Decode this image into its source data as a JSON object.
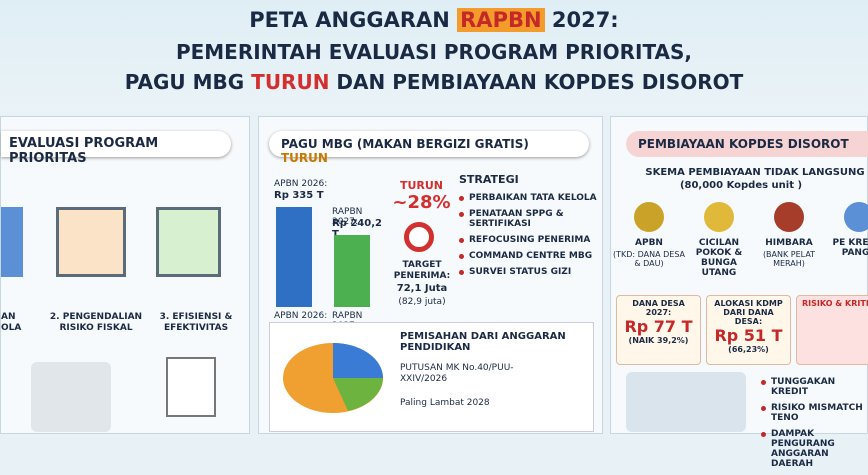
{
  "header": {
    "title_line1": [
      "PETA ANGGARAN",
      "RAPBN",
      "2027:"
    ],
    "title_line2": "PEMERINTAH EVALUASI PROGRAM PRIORITAS,",
    "title_line3": [
      "PAGU MBG",
      "TURUN",
      "DAN PEMBIAYAAN KOPDES DISOROT"
    ]
  },
  "left": {
    "title": "EVALUASI PROGRAM PRIORITAS",
    "items": [
      "AN OLA",
      "2. PENGENDALIAN RISIKO FISKAL",
      "3. EFISIENSI & EFEKTIVITAS"
    ]
  },
  "middle": {
    "title": "PAGU MBG (MAKAN BERGIZI GRATIS)",
    "title_highlight": "TURUN",
    "chart": {
      "type": "bar",
      "categories": [
        "APBN 2026:",
        "RAPBN 2027:"
      ],
      "values": [
        335,
        240.2
      ],
      "value_labels": [
        "Rp 335 T",
        "Rp 240,2 T"
      ],
      "colors": [
        "#2f6fc4",
        "#4caf50"
      ]
    },
    "drop_label": "TURUN",
    "drop_value": "~28%",
    "target_label": "TARGET PENERIMA:",
    "target_value": "72,1 Juta",
    "target_note": "(82,9 juta)",
    "strategy_title": "STRATEGI",
    "strategies": [
      "PERBAIKAN TATA KELOLA",
      "PENATAAN SPPG & SERTIFIKASI",
      "REFOCUSING PENERIMA",
      "COMMAND CENTRE MBG",
      "SURVEI STATUS GIZI"
    ],
    "separation_title": "PEMISAHAN DARI ANGGARAN PENDIDIKAN",
    "separation_items": [
      "PUTUSAN MK No.40/PUU-XXIV/2026",
      "Paling Lambat 2028"
    ]
  },
  "right": {
    "title": "PEMBIAYAAN KOPDES DISOROT",
    "scheme_title": "SKEMA PEMBIAYAAN TIDAK LANGSUNG",
    "scheme_note": "(80,000 Kopdes unit )",
    "flow": [
      {
        "label": "APBN",
        "note": "(TKD: DANA DESA & DAU)"
      },
      {
        "label": "CICILAN POKOK & BUNGA UTANG",
        "note": ""
      },
      {
        "label": "HIMBARA",
        "note": "(BANK PELAT MERAH)"
      },
      {
        "label": "PE KREDIT PANGA",
        "note": ""
      }
    ],
    "boxes": [
      {
        "label": "DANA DESA 2027:",
        "value": "Rp 77 T",
        "note": "(NAIK 39,2%)"
      },
      {
        "label": "ALOKASI KDMP DARI DANA DESA:",
        "value": "Rp 51 T",
        "note": "(66,23%)"
      },
      {
        "label": "RISIKO & KRITIK",
        "value": "",
        "note": ""
      }
    ],
    "risks": [
      "TUNGGAKAN KREDIT",
      "RISIKO MISMATCH TENO",
      "DAMPAK PENGURANG ANGGARAN DAERAH"
    ]
  }
}
